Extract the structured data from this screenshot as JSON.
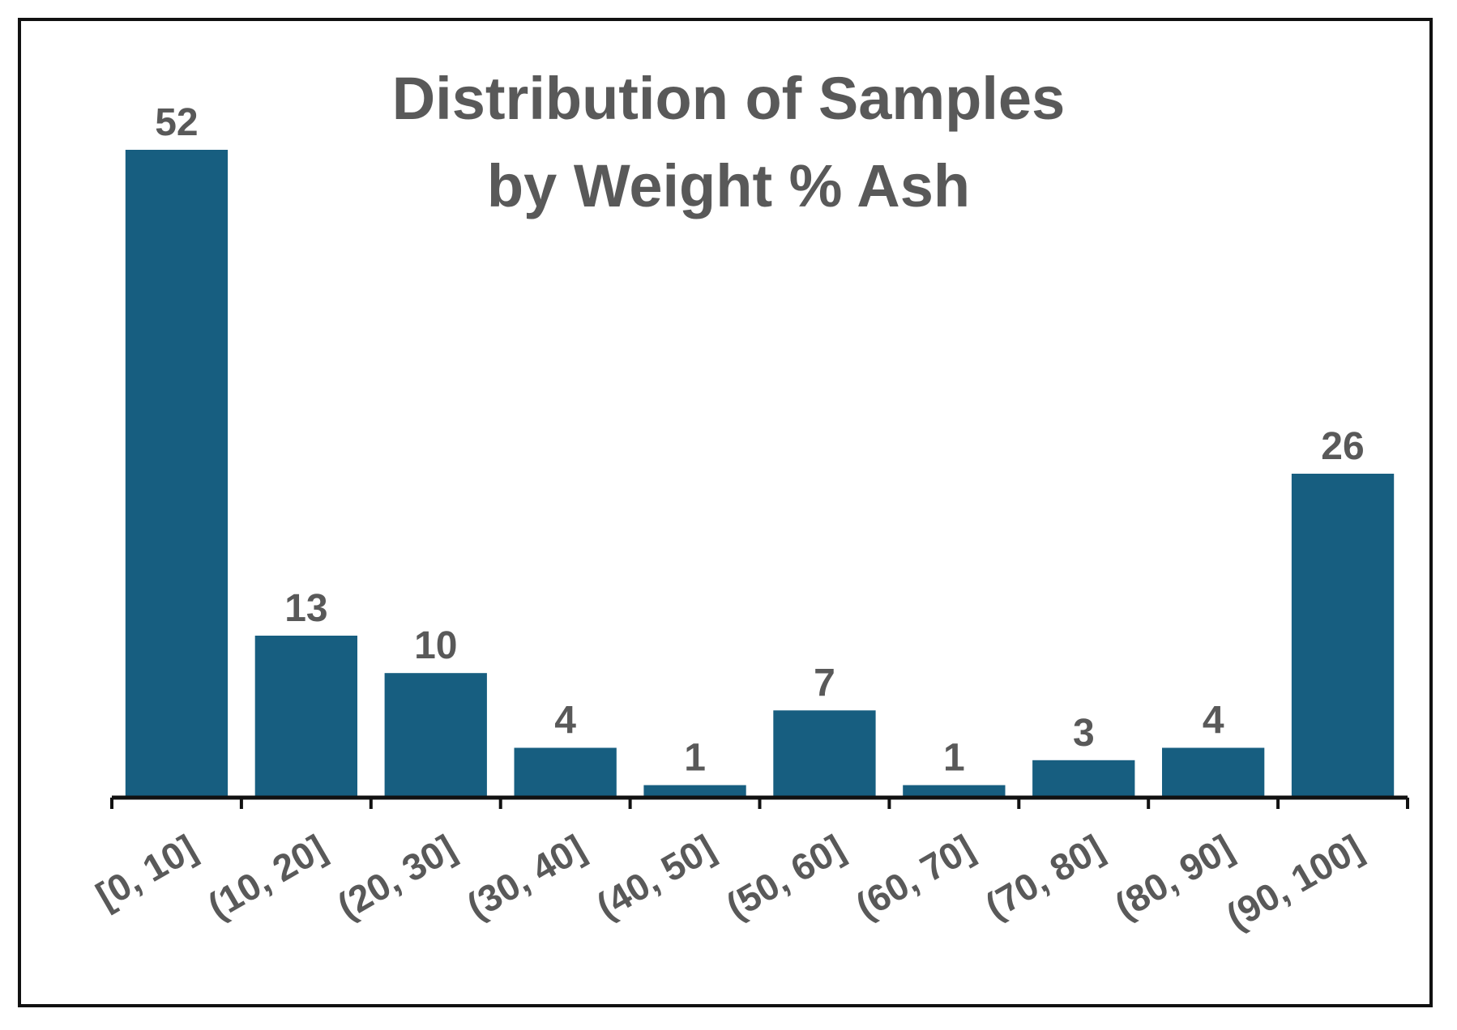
{
  "chart_data": {
    "type": "bar",
    "title_lines": [
      "Distribution of Samples",
      "by Weight % Ash"
    ],
    "categories": [
      "[0, 10]",
      "(10, 20]",
      "(20, 30]",
      "(30, 40]",
      "(40, 50]",
      "(50, 60]",
      "(60, 70]",
      "(70, 80]",
      "(80, 90]",
      "(90, 100]"
    ],
    "values": [
      52,
      13,
      10,
      4,
      1,
      7,
      1,
      3,
      4,
      26
    ],
    "xlabel": "",
    "ylabel": "",
    "ylim": [
      0,
      52
    ],
    "grid": false,
    "legend": "none",
    "data_labels": true,
    "colors": {
      "bar": "#175e80",
      "text": "#595959",
      "axis": "#111111",
      "frame": "#111111"
    }
  }
}
